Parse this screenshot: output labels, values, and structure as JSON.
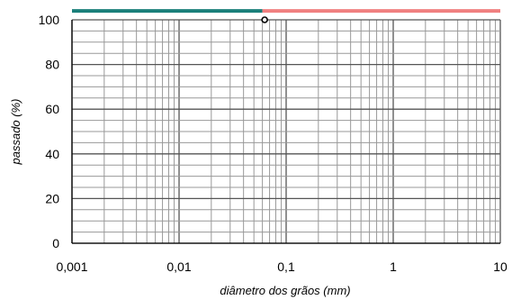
{
  "chart_data": {
    "type": "line",
    "title": "",
    "xlabel": "diâmetro dos grãos  (mm)",
    "ylabel": "passado  (%)",
    "x_scale": "log",
    "xlim": [
      0.001,
      10
    ],
    "ylim": [
      0,
      100
    ],
    "x_ticks": [
      "0,001",
      "0,01",
      "0,1",
      "1",
      "10"
    ],
    "y_ticks": [
      "0",
      "20",
      "40",
      "60",
      "80",
      "100"
    ],
    "grid": true,
    "legend": "none",
    "bands": [
      {
        "x": [
          0.001,
          0.06
        ],
        "y": 104,
        "color": "#1a7f7a"
      },
      {
        "x": [
          0.06,
          10
        ],
        "y": 104,
        "color": "#f08080"
      }
    ],
    "points": [
      {
        "x": 0.063,
        "y": 100
      }
    ]
  }
}
